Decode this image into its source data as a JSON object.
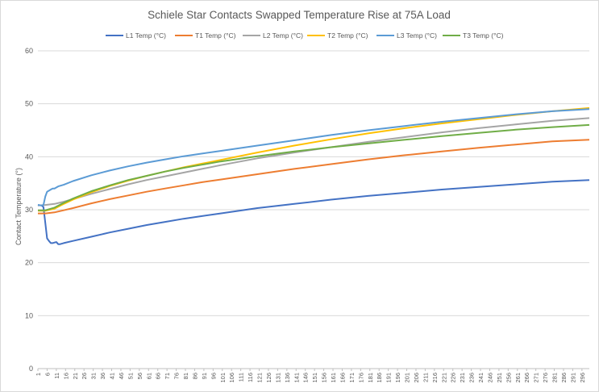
{
  "chart_data": {
    "type": "line",
    "title": "Schiele Star Contacts Swapped Temperature Rise at 75A Load",
    "xlabel": "",
    "ylabel": "Contact Temperature (°)",
    "ylim": [
      0,
      60
    ],
    "yticks": [
      "0",
      "10",
      "20",
      "30",
      "40",
      "50",
      "60"
    ],
    "xlim": [
      1,
      300
    ],
    "xticks": [
      "1",
      "6",
      "11",
      "16",
      "21",
      "26",
      "31",
      "36",
      "41",
      "46",
      "51",
      "56",
      "61",
      "66",
      "71",
      "76",
      "81",
      "86",
      "91",
      "96",
      "101",
      "106",
      "111",
      "116",
      "121",
      "126",
      "131",
      "136",
      "141",
      "146",
      "151",
      "156",
      "161",
      "166",
      "171",
      "176",
      "181",
      "186",
      "191",
      "196",
      "201",
      "206",
      "211",
      "216",
      "221",
      "226",
      "231",
      "236",
      "241",
      "246",
      "251",
      "256",
      "261",
      "266",
      "271",
      "276",
      "281",
      "286",
      "291",
      "296"
    ],
    "grid": true,
    "legend_position": "top",
    "series": [
      {
        "name": "L1 Temp (°C)",
        "color": "#4472C4",
        "x": [
          1,
          3,
          4,
          5,
          6,
          7,
          8,
          9,
          10,
          11,
          12,
          13,
          15,
          20,
          30,
          40,
          50,
          60,
          70,
          80,
          90,
          100,
          120,
          140,
          160,
          180,
          200,
          220,
          240,
          260,
          280,
          300
        ],
        "y": [
          30.9,
          30.8,
          30.5,
          27.5,
          24.6,
          24.1,
          23.7,
          23.7,
          23.8,
          23.9,
          23.5,
          23.5,
          23.7,
          24.1,
          24.9,
          25.7,
          26.4,
          27.1,
          27.7,
          28.3,
          28.8,
          29.3,
          30.3,
          31.1,
          31.9,
          32.6,
          33.2,
          33.8,
          34.3,
          34.8,
          35.3,
          35.6
        ]
      },
      {
        "name": "T1 Temp (°C)",
        "color": "#ED7D31",
        "x": [
          1,
          5,
          10,
          15,
          20,
          30,
          40,
          50,
          60,
          70,
          80,
          90,
          100,
          120,
          140,
          160,
          180,
          200,
          220,
          240,
          260,
          280,
          300
        ],
        "y": [
          29.3,
          29.3,
          29.5,
          29.9,
          30.3,
          31.2,
          32.0,
          32.7,
          33.4,
          34.0,
          34.6,
          35.2,
          35.7,
          36.7,
          37.7,
          38.6,
          39.5,
          40.3,
          41.0,
          41.7,
          42.3,
          42.9,
          43.2
        ]
      },
      {
        "name": "L2 Temp (°C)",
        "color": "#A5A5A5",
        "x": [
          1,
          5,
          10,
          15,
          20,
          30,
          40,
          50,
          60,
          70,
          80,
          90,
          100,
          120,
          140,
          160,
          180,
          200,
          220,
          240,
          260,
          280,
          300
        ],
        "y": [
          30.8,
          30.9,
          31.1,
          31.5,
          32.0,
          33.0,
          33.9,
          34.8,
          35.6,
          36.3,
          37.0,
          37.7,
          38.4,
          39.7,
          40.8,
          41.8,
          42.8,
          43.7,
          44.6,
          45.4,
          46.1,
          46.8,
          47.3
        ]
      },
      {
        "name": "T2 Temp (°C)",
        "color": "#FFC000",
        "x": [
          1,
          5,
          10,
          15,
          20,
          30,
          40,
          50,
          60,
          70,
          80,
          90,
          100,
          120,
          140,
          160,
          180,
          200,
          220,
          240,
          260,
          280,
          300
        ],
        "y": [
          29.8,
          29.8,
          30.2,
          31.1,
          31.9,
          33.3,
          34.5,
          35.5,
          36.4,
          37.2,
          38.0,
          38.7,
          39.4,
          40.8,
          42.1,
          43.3,
          44.4,
          45.4,
          46.3,
          47.1,
          47.9,
          48.6,
          49.2
        ]
      },
      {
        "name": "L3 Temp (°C)",
        "color": "#5B9BD5",
        "x": [
          1,
          3,
          4,
          5,
          6,
          7,
          8,
          9,
          10,
          12,
          15,
          20,
          30,
          40,
          50,
          60,
          70,
          80,
          90,
          100,
          120,
          140,
          160,
          180,
          200,
          220,
          240,
          260,
          280,
          300
        ],
        "y": [
          30.9,
          30.8,
          30.9,
          32.5,
          33.4,
          33.6,
          33.8,
          34.0,
          34.0,
          34.4,
          34.7,
          35.4,
          36.5,
          37.4,
          38.2,
          38.9,
          39.5,
          40.1,
          40.6,
          41.1,
          42.1,
          43.1,
          44.1,
          45.0,
          45.8,
          46.6,
          47.3,
          48.0,
          48.6,
          49.0
        ]
      },
      {
        "name": "T3 Temp (°C)",
        "color": "#70AD47",
        "x": [
          1,
          5,
          10,
          15,
          20,
          30,
          40,
          50,
          60,
          70,
          80,
          90,
          100,
          120,
          140,
          160,
          180,
          200,
          220,
          240,
          260,
          280,
          300
        ],
        "y": [
          29.9,
          29.9,
          30.4,
          31.3,
          32.1,
          33.5,
          34.6,
          35.6,
          36.4,
          37.2,
          37.9,
          38.5,
          39.1,
          40.1,
          41.0,
          41.8,
          42.5,
          43.2,
          43.9,
          44.5,
          45.1,
          45.6,
          46.0
        ]
      }
    ]
  }
}
